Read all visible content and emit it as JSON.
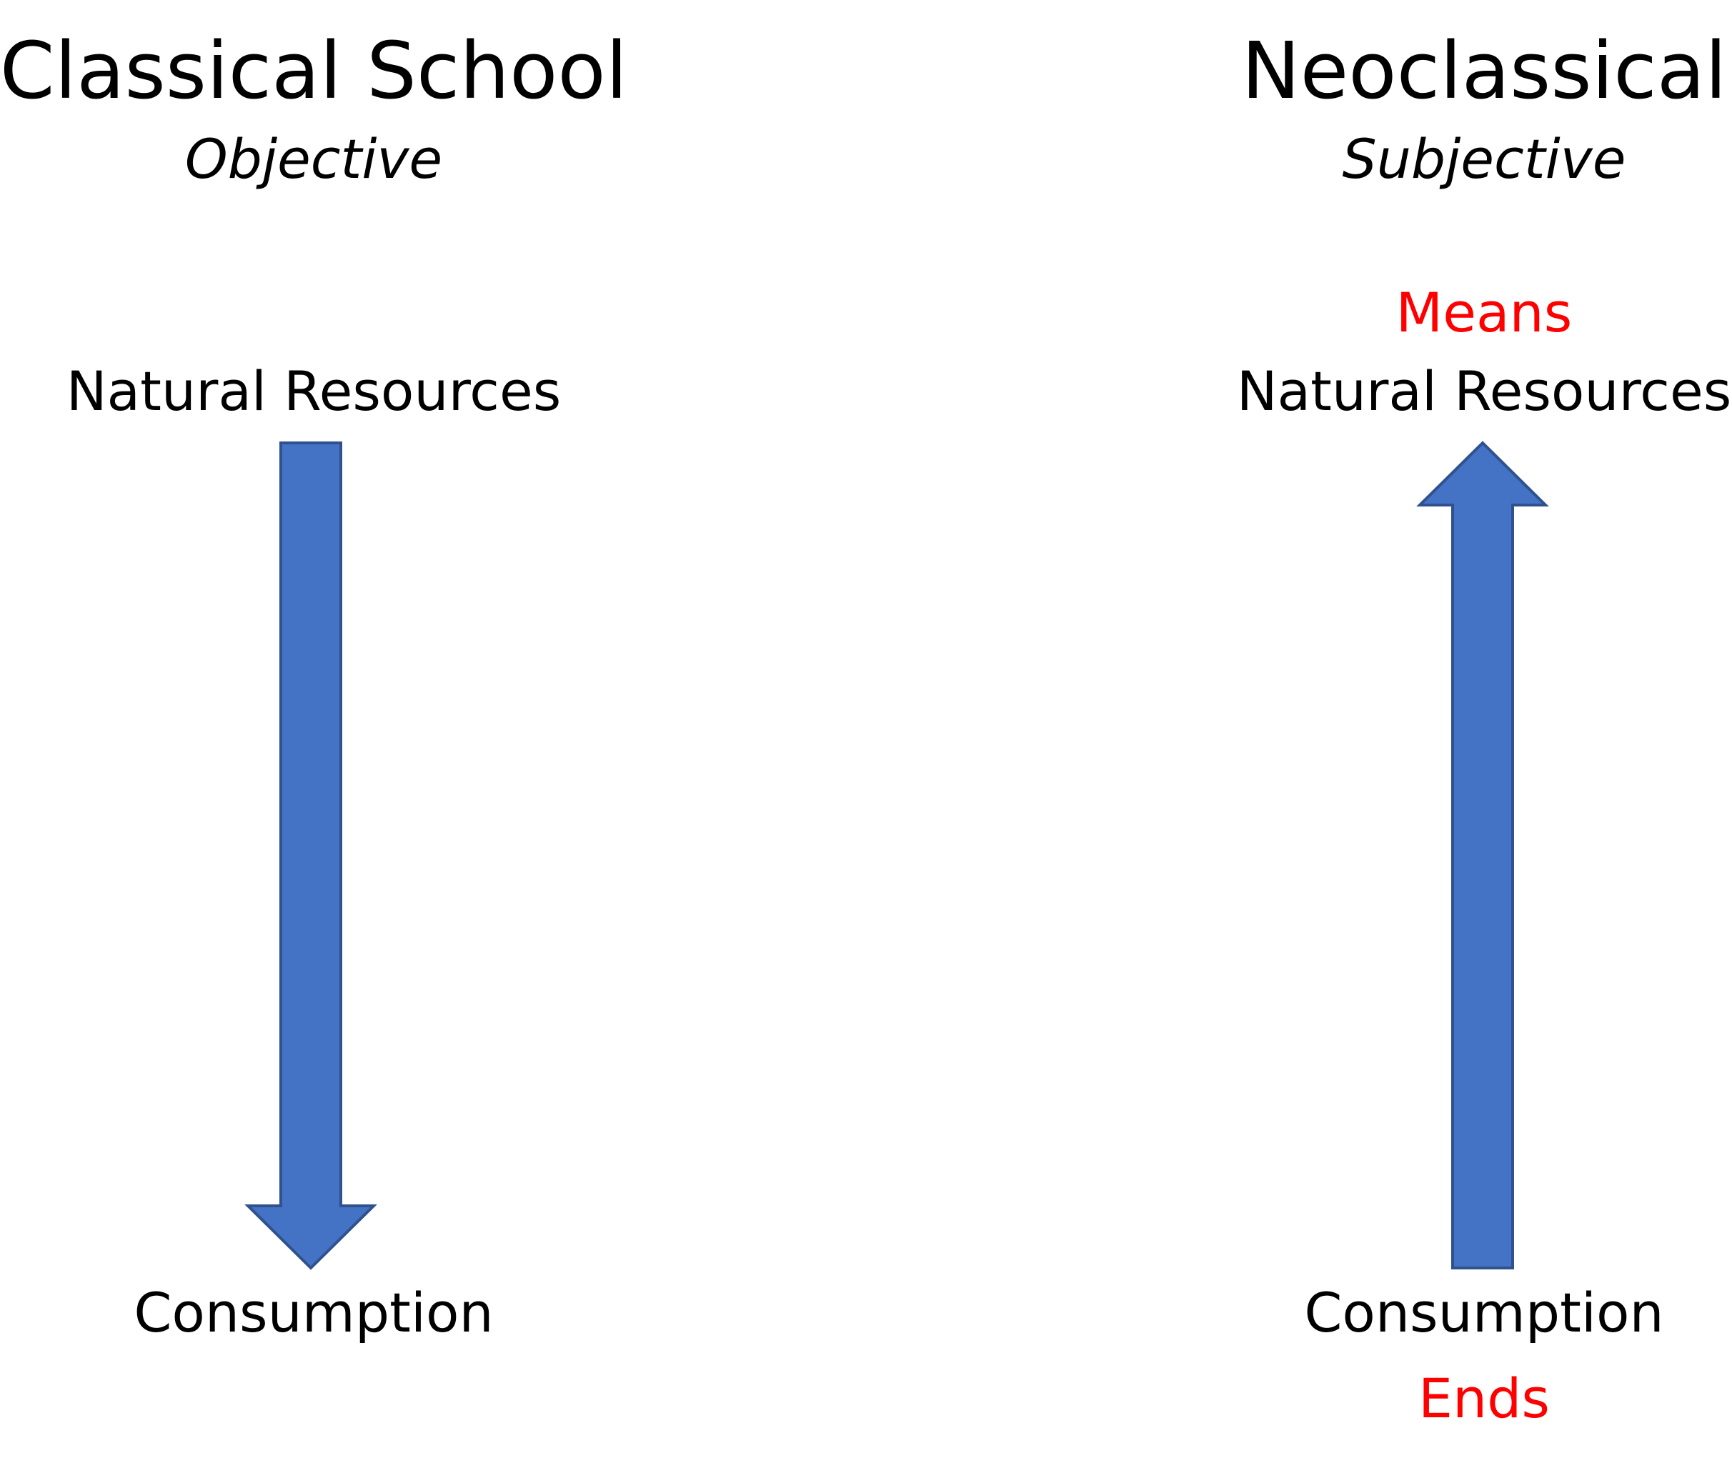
{
  "arrow_fill": "#4472c4",
  "arrow_stroke": "#2f528f",
  "accent_color": "#ff0000",
  "left": {
    "title": "Classical School",
    "subtitle": "Objective",
    "top_node": "Natural Resources",
    "bottom_node": "Consumption",
    "arrow_direction": "down"
  },
  "right": {
    "title": "Neoclassical",
    "subtitle": "Subjective",
    "top_label": "Means",
    "top_node": "Natural Resources",
    "bottom_node": "Consumption",
    "bottom_label": "Ends",
    "arrow_direction": "up"
  }
}
